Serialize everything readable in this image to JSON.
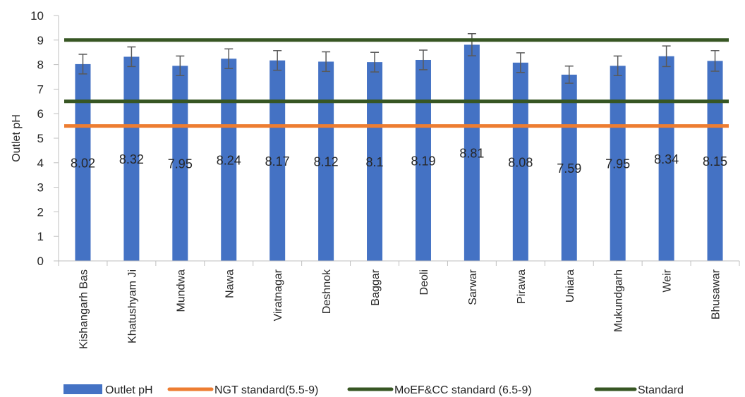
{
  "chart_data": {
    "type": "bar",
    "title": "",
    "xlabel": "",
    "ylabel": "Outlet pH",
    "ylim": [
      0,
      10
    ],
    "yticks": [
      0,
      1,
      2,
      3,
      4,
      5,
      6,
      7,
      8,
      9,
      10
    ],
    "categories": [
      "Kishangarh Bas",
      "Khatushyam Ji",
      "Mundwa",
      "Nawa",
      "Viratnagar",
      "Deshnok",
      "Baggar",
      "Deoli",
      "Sarwar",
      "Pirawa",
      "Uniara",
      "Mukundgarh",
      "Weir",
      "Bhusawar"
    ],
    "series": [
      {
        "name": "Outlet pH",
        "type": "bar",
        "color": "#4472C4",
        "values": [
          8.02,
          8.32,
          7.95,
          8.24,
          8.17,
          8.12,
          8.1,
          8.19,
          8.81,
          8.08,
          7.59,
          7.95,
          8.34,
          8.15
        ],
        "data_labels": [
          "8.02",
          "8.32",
          "7.95",
          "8.24",
          "8.17",
          "8.12",
          "8.1",
          "8.19",
          "8.81",
          "8.08",
          "7.59",
          "7.95",
          "8.34",
          "8.15"
        ],
        "error": [
          0.4,
          0.4,
          0.4,
          0.4,
          0.4,
          0.4,
          0.4,
          0.4,
          0.45,
          0.4,
          0.35,
          0.4,
          0.42,
          0.42
        ]
      },
      {
        "name": "NGT standard(5.5-9)",
        "type": "line",
        "color": "#ED7D31",
        "values": [
          5.5,
          5.5,
          5.5,
          5.5,
          5.5,
          5.5,
          5.5,
          5.5,
          5.5,
          5.5,
          5.5,
          5.5,
          5.5,
          5.5
        ]
      },
      {
        "name": "MoEF&CC standard (6.5-9)",
        "type": "line",
        "color": "#375623",
        "values": [
          6.5,
          6.5,
          6.5,
          6.5,
          6.5,
          6.5,
          6.5,
          6.5,
          6.5,
          6.5,
          6.5,
          6.5,
          6.5,
          6.5
        ]
      },
      {
        "name": "Standard",
        "type": "line",
        "color": "#375623",
        "values": [
          9,
          9,
          9,
          9,
          9,
          9,
          9,
          9,
          9,
          9,
          9,
          9,
          9,
          9
        ]
      }
    ],
    "grid": false,
    "legend_position": "bottom"
  }
}
